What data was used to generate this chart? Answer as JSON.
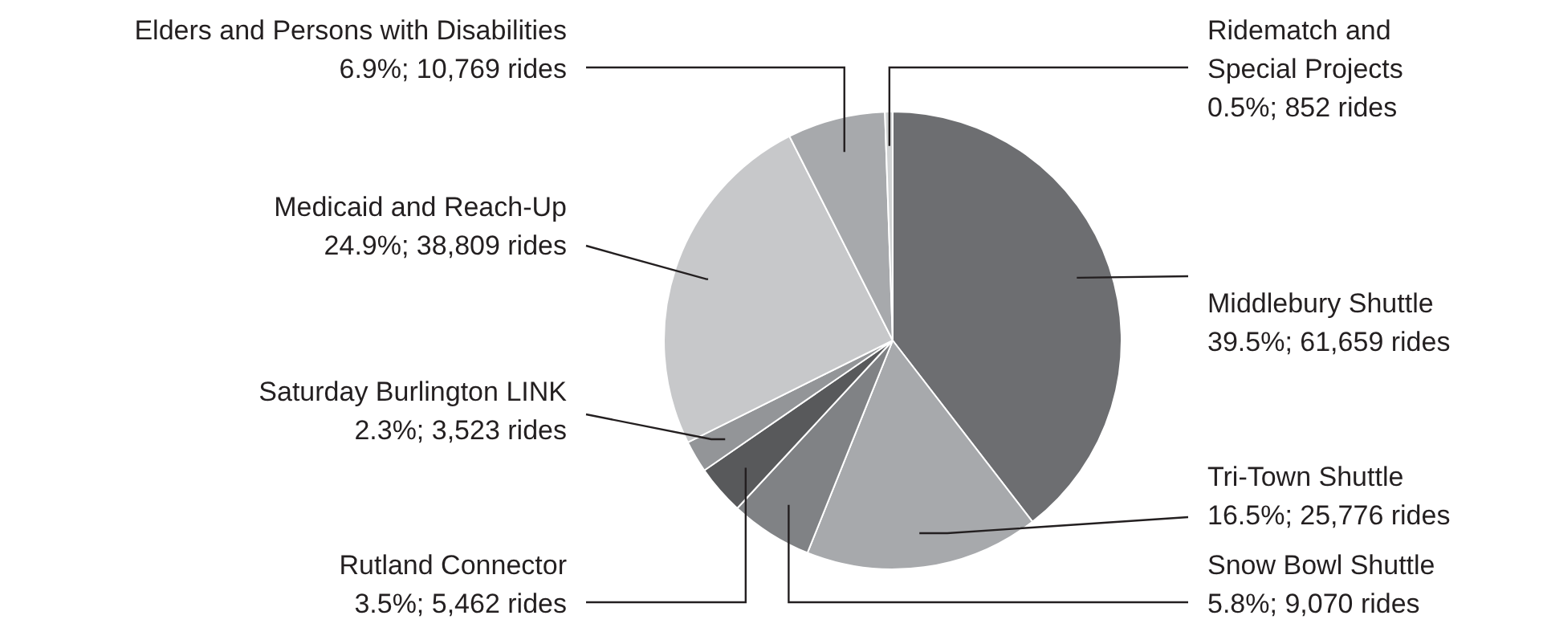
{
  "chart_data": {
    "type": "pie",
    "categories": [
      "Middlebury Shuttle",
      "Tri-Town Shuttle",
      "Snow Bowl Shuttle",
      "Rutland Connector",
      "Saturday Burlington LINK",
      "Medicaid and Reach-Up",
      "Elders and Persons with Disabilities",
      "Ridematch and Special Projects"
    ],
    "values": [
      61659,
      25776,
      9070,
      5462,
      3523,
      38809,
      10769,
      852
    ],
    "value_labels": [
      "39.5%; 61,659 rides",
      "16.5%; 25,776 rides",
      "5.8%; 9,070 rides",
      "3.5%; 5,462 rides",
      "2.3%; 3,523 rides",
      "24.9%; 38,809 rides",
      "6.9%; 10,769 rides",
      "0.5%; 852 rides"
    ],
    "colors": [
      "#6d6e71",
      "#a7a9ac",
      "#808285",
      "#58595b",
      "#939598",
      "#c7c8ca",
      "#a7a9ac",
      "#d1d3d4"
    ],
    "legend": false
  }
}
